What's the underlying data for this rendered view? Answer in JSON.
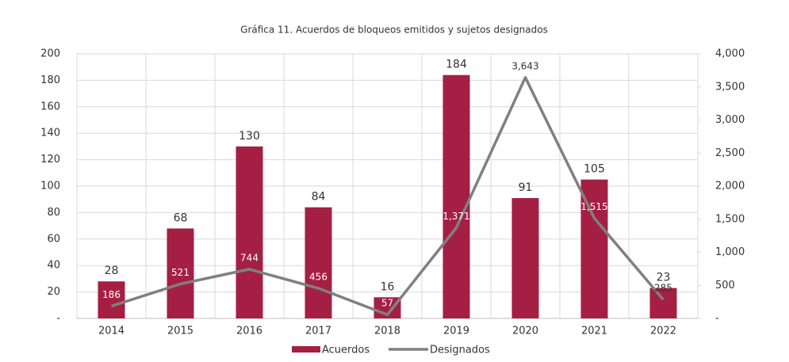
{
  "chart_data": {
    "type": "bar-line",
    "title": "Gráfica 11. Acuerdos de bloqueos emitidos y sujetos designados",
    "categories": [
      "2014",
      "2015",
      "2016",
      "2017",
      "2018",
      "2019",
      "2020",
      "2021",
      "2022"
    ],
    "series": [
      {
        "name": "Acuerdos",
        "color": "#a51f45",
        "type": "bar",
        "values": [
          28,
          68,
          130,
          84,
          16,
          184,
          91,
          105,
          23
        ]
      },
      {
        "name": "Designados",
        "color": "#808080",
        "type": "line",
        "axis": "y2",
        "values": [
          186,
          521,
          744,
          456,
          57,
          1371,
          3643,
          1515,
          285
        ],
        "value_labels": [
          "186",
          "521",
          "744",
          "456",
          "57",
          "1,371",
          "3,643",
          "1,515",
          "285"
        ]
      }
    ],
    "ylim": [
      0,
      200
    ],
    "yticks": [
      {
        "value": 0,
        "label": "-"
      },
      20,
      40,
      60,
      80,
      100,
      120,
      140,
      160,
      180,
      200
    ],
    "y2lim": [
      0,
      4000
    ],
    "y2ticks": [
      {
        "value": 0,
        "label": "-"
      },
      500,
      {
        "value": 1000,
        "label": "1,000"
      },
      {
        "value": 1500,
        "label": "1,500"
      },
      {
        "value": 2000,
        "label": "2,000"
      },
      {
        "value": 2500,
        "label": "2,500"
      },
      {
        "value": 3000,
        "label": "3,000"
      },
      {
        "value": 3500,
        "label": "3,500"
      },
      {
        "value": 4000,
        "label": "4,000"
      }
    ],
    "grid": true
  }
}
